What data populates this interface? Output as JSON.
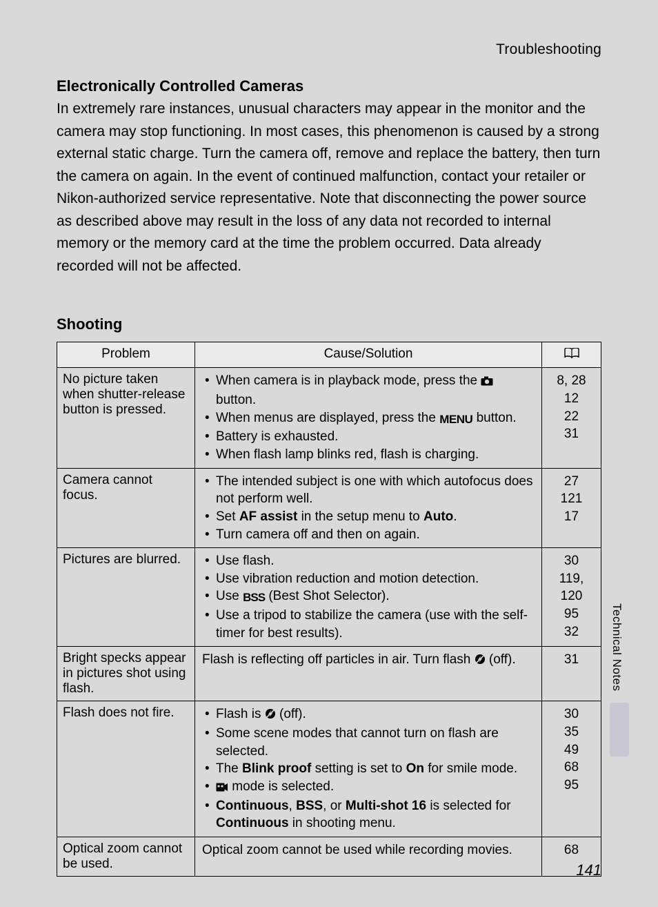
{
  "header": {
    "title": "Troubleshooting"
  },
  "sidebar": {
    "label": "Technical Notes"
  },
  "page_number": "141",
  "intro": {
    "heading": "Electronically Controlled Cameras",
    "body": "In extremely rare instances, unusual characters may appear in the monitor and the camera may stop functioning. In most cases, this phenomenon is caused by a strong external static charge. Turn the camera off, remove and replace the battery, then turn the camera on again. In the event of continued malfunction, contact your retailer or Nikon-authorized service representative. Note that disconnecting the power source as described above may result in the loss of any data not recorded to internal memory or the memory card at the time the problem occurred. Data already recorded will not be affected."
  },
  "section": {
    "heading": "Shooting"
  },
  "table": {
    "columns": {
      "problem": "Problem",
      "solution": "Cause/Solution",
      "ref_icon": "book"
    },
    "rows": [
      {
        "problem": "No picture taken when shutter-release button is pressed.",
        "solutions": [
          {
            "pre": "When camera is in playback mode, press the ",
            "icon": "camera",
            "post": " button."
          },
          {
            "pre": "When menus are displayed, press the ",
            "icon": "menu",
            "post": " button."
          },
          {
            "text": "Battery is exhausted."
          },
          {
            "text": "When flash lamp blinks red, flash is charging."
          }
        ],
        "refs": [
          "8, 28",
          "12",
          "22",
          "31"
        ]
      },
      {
        "problem": "Camera cannot focus.",
        "solutions": [
          {
            "text": "The intended subject is one with which autofocus does not perform well."
          },
          {
            "pre": "Set ",
            "b1": "AF assist",
            "mid": " in the setup menu to ",
            "b2": "Auto",
            "post": "."
          },
          {
            "text": "Turn camera off and then on again."
          }
        ],
        "refs": [
          "27",
          "121",
          "17"
        ]
      },
      {
        "problem": "Pictures are blurred.",
        "solutions": [
          {
            "text": "Use flash."
          },
          {
            "text": "Use vibration reduction and motion detection."
          },
          {
            "pre": "Use ",
            "icon": "bss",
            "post": " (Best Shot Selector)."
          },
          {
            "text": "Use a tripod to stabilize the camera (use with the self-timer for best results)."
          }
        ],
        "refs": [
          "30",
          "119, 120",
          "95",
          "32"
        ]
      },
      {
        "problem": "Bright specks appear in pictures shot using flash.",
        "solution_plain": {
          "pre": "Flash is reflecting off particles in air. Turn flash ",
          "icon": "flash-off",
          "post": " (off)."
        },
        "refs": [
          "31"
        ]
      },
      {
        "problem": "Flash does not fire.",
        "solutions": [
          {
            "pre": "Flash is ",
            "icon": "flash-off",
            "post": " (off)."
          },
          {
            "text": "Some scene modes that cannot turn on flash are selected."
          },
          {
            "pre": "The ",
            "b1": "Blink proof",
            "mid": " setting is set to ",
            "b2": "On",
            "post": " for smile mode."
          },
          {
            "icon": "movie",
            "post": " mode is selected."
          },
          {
            "b1": "Continuous",
            "mid1": ", ",
            "b2": "BSS",
            "mid2": ", or ",
            "b3": "Multi-shot 16",
            "mid3": " is selected for ",
            "b4": "Continuous",
            "post": " in shooting menu."
          }
        ],
        "refs": [
          "30",
          "35",
          "49",
          "68",
          "95"
        ]
      },
      {
        "problem": "Optical zoom cannot be used.",
        "solution_plain": {
          "text": "Optical zoom cannot be used while recording movies."
        },
        "refs": [
          "68"
        ]
      }
    ]
  },
  "colors": {
    "page_bg": "#d9d9d9",
    "header_bg": "#eaeaea",
    "border": "#000000",
    "tab": "#c9c7d4"
  }
}
